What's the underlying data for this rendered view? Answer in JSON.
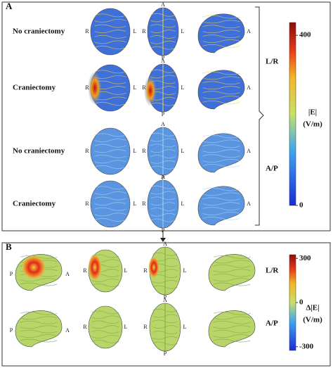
{
  "panel_a": {
    "label": "A",
    "rows": [
      "No craniectomy",
      "Craniectomy",
      "No craniectomy",
      "Craniectomy"
    ],
    "groups": [
      "L/R",
      "A/P"
    ],
    "colorbar": {
      "title": "|E|",
      "unit": "(V/m)",
      "range": [
        0,
        430
      ],
      "ticks": [
        400,
        0
      ]
    }
  },
  "panel_b": {
    "label": "B",
    "groups": [
      "L/R",
      "A/P"
    ],
    "colorbar": {
      "title": "Δ|E|",
      "unit": "(V/m)",
      "range": [
        -325,
        325
      ],
      "ticks": [
        300,
        0,
        -300
      ]
    }
  },
  "orientation_letters": [
    "R",
    "L",
    "A",
    "P"
  ]
}
